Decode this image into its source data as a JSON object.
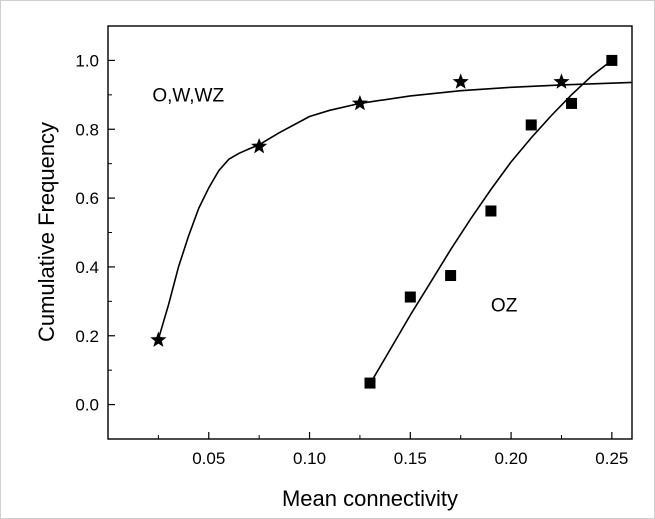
{
  "chart_data": {
    "type": "scatter",
    "xlabel": "Mean connectivity",
    "ylabel": "Cumulative Frequency",
    "xlim": [
      0.0,
      0.26
    ],
    "ylim": [
      -0.1,
      1.1
    ],
    "xticks": [
      0.05,
      0.1,
      0.15,
      0.2,
      0.25
    ],
    "xtick_labels": [
      "0.05",
      "0.10",
      "0.15",
      "0.20",
      "0.25"
    ],
    "yticks": [
      0.0,
      0.2,
      0.4,
      0.6,
      0.8,
      1.0
    ],
    "ytick_labels": [
      "0.0",
      "0.2",
      "0.4",
      "0.6",
      "0.8",
      "1.0"
    ],
    "grid": false,
    "series": [
      {
        "marker": "star",
        "x": [
          0.025,
          0.075,
          0.125,
          0.175,
          0.225
        ],
        "y": [
          0.1875,
          0.75,
          0.875,
          0.9375,
          0.9375
        ],
        "fit": [
          [
            0.025,
            0.19
          ],
          [
            0.03,
            0.29
          ],
          [
            0.035,
            0.4
          ],
          [
            0.04,
            0.49
          ],
          [
            0.045,
            0.57
          ],
          [
            0.05,
            0.63
          ],
          [
            0.055,
            0.68
          ],
          [
            0.06,
            0.713
          ],
          [
            0.065,
            0.73
          ],
          [
            0.07,
            0.743
          ],
          [
            0.075,
            0.755
          ],
          [
            0.085,
            0.79
          ],
          [
            0.1,
            0.837
          ],
          [
            0.11,
            0.855
          ],
          [
            0.125,
            0.875
          ],
          [
            0.15,
            0.897
          ],
          [
            0.175,
            0.912
          ],
          [
            0.2,
            0.922
          ],
          [
            0.225,
            0.929
          ],
          [
            0.26,
            0.936
          ]
        ]
      },
      {
        "marker": "square",
        "x": [
          0.13,
          0.15,
          0.17,
          0.19,
          0.21,
          0.23,
          0.25
        ],
        "y": [
          0.0625,
          0.3125,
          0.375,
          0.5625,
          0.8125,
          0.875,
          1.0
        ],
        "fit": [
          [
            0.13,
            0.06
          ],
          [
            0.14,
            0.16
          ],
          [
            0.15,
            0.26
          ],
          [
            0.16,
            0.355
          ],
          [
            0.17,
            0.45
          ],
          [
            0.18,
            0.54
          ],
          [
            0.19,
            0.625
          ],
          [
            0.2,
            0.705
          ],
          [
            0.21,
            0.775
          ],
          [
            0.22,
            0.84
          ],
          [
            0.23,
            0.9
          ],
          [
            0.24,
            0.955
          ],
          [
            0.25,
            1.0
          ]
        ]
      }
    ],
    "annotations": [
      {
        "text": "O,W,WZ",
        "x": 0.022,
        "y": 0.88
      },
      {
        "text": "OZ",
        "x": 0.19,
        "y": 0.27
      }
    ]
  }
}
